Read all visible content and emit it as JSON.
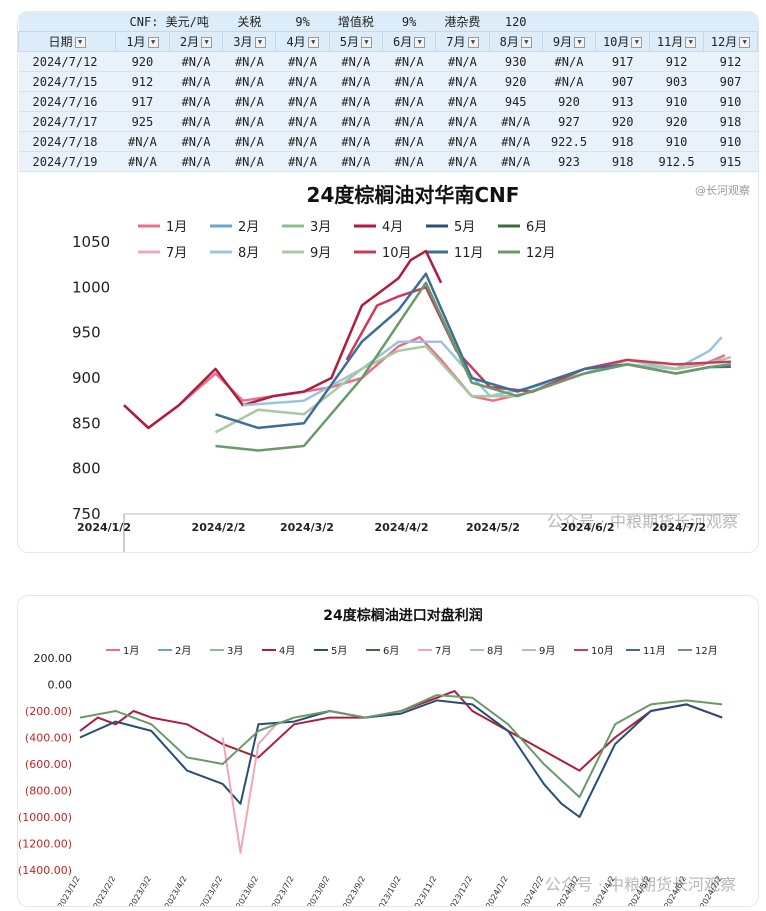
{
  "colors": {
    "m1": "#e8708a",
    "m2": "#6aa6cf",
    "m3": "#8fbc8f",
    "m4": "#b01c3c",
    "m5": "#274f76",
    "m6": "#3e6b3e",
    "m7": "#f0a8b8",
    "m8": "#9cc4de",
    "m9": "#a8c8a0",
    "m10": "#c83c5a",
    "m11": "#3c6e98",
    "m12": "#6a9a6a"
  },
  "table": {
    "params": [
      "CNF: 美元/吨",
      "关税",
      "9%",
      "增值税",
      "9%",
      "港杂费",
      "120"
    ],
    "header": [
      "日期",
      "1月",
      "2月",
      "3月",
      "4月",
      "5月",
      "6月",
      "7月",
      "8月",
      "9月",
      "10月",
      "11月",
      "12月"
    ],
    "rows": [
      [
        "2024/7/12",
        "920",
        "#N/A",
        "#N/A",
        "#N/A",
        "#N/A",
        "#N/A",
        "#N/A",
        "930",
        "#N/A",
        "917",
        "912",
        "912"
      ],
      [
        "2024/7/15",
        "912",
        "#N/A",
        "#N/A",
        "#N/A",
        "#N/A",
        "#N/A",
        "#N/A",
        "920",
        "#N/A",
        "907",
        "903",
        "907"
      ],
      [
        "2024/7/16",
        "917",
        "#N/A",
        "#N/A",
        "#N/A",
        "#N/A",
        "#N/A",
        "#N/A",
        "945",
        "920",
        "913",
        "910",
        "910"
      ],
      [
        "2024/7/17",
        "925",
        "#N/A",
        "#N/A",
        "#N/A",
        "#N/A",
        "#N/A",
        "#N/A",
        "#N/A",
        "927",
        "920",
        "920",
        "918"
      ],
      [
        "2024/7/18",
        "#N/A",
        "#N/A",
        "#N/A",
        "#N/A",
        "#N/A",
        "#N/A",
        "#N/A",
        "#N/A",
        "922.5",
        "918",
        "910",
        "910"
      ],
      [
        "2024/7/19",
        "#N/A",
        "#N/A",
        "#N/A",
        "#N/A",
        "#N/A",
        "#N/A",
        "#N/A",
        "#N/A",
        "923",
        "918",
        "912.5",
        "915"
      ]
    ]
  },
  "chart_data": [
    {
      "type": "line",
      "title": "24度棕榈油对华南CNF",
      "watermark_top": "@长河观察",
      "watermark": "公众号 · 中粮期货长河观察",
      "xlabel": "",
      "ylabel": "",
      "ylim": [
        750,
        1050
      ],
      "yticks": [
        "750",
        "800",
        "850",
        "900",
        "950",
        "1000",
        "1050"
      ],
      "xticks": [
        "2024/1/2",
        "2024/2/2",
        "2024/3/2",
        "2024/4/2",
        "2024/5/2",
        "2024/6/2",
        "2024/7/2"
      ],
      "legend": [
        "1月",
        "2月",
        "3月",
        "4月",
        "5月",
        "6月",
        "7月",
        "8月",
        "9月",
        "10月",
        "11月",
        "12月"
      ],
      "legend_position": "top",
      "series": [
        {
          "name": "1月",
          "x": [
            "2024/1/2",
            "2024/1/10",
            "2024/1/20",
            "2024/2/1",
            "2024/2/10",
            "2024/2/20",
            "2024/3/1",
            "2024/3/10",
            "2024/3/20",
            "2024/4/1",
            "2024/4/8",
            "2024/4/15",
            "2024/4/25",
            "2024/5/2",
            "2024/5/15",
            "2024/6/1",
            "2024/6/15",
            "2024/7/1",
            "2024/7/10",
            "2024/7/17"
          ],
          "y": [
            870,
            845,
            870,
            905,
            875,
            880,
            885,
            890,
            900,
            935,
            945,
            920,
            880,
            875,
            885,
            905,
            915,
            910,
            915,
            925
          ]
        },
        {
          "name": "4月",
          "x": [
            "2024/1/2",
            "2024/1/10",
            "2024/1/20",
            "2024/2/1",
            "2024/2/10",
            "2024/2/20",
            "2024/3/1",
            "2024/3/10",
            "2024/3/20",
            "2024/4/1",
            "2024/4/5",
            "2024/4/10",
            "2024/4/15"
          ],
          "y": [
            870,
            845,
            870,
            910,
            870,
            880,
            885,
            900,
            980,
            1010,
            1030,
            1040,
            1005
          ]
        },
        {
          "name": "8月",
          "x": [
            "2024/2/10",
            "2024/3/1",
            "2024/3/20",
            "2024/4/1",
            "2024/4/15",
            "2024/5/1",
            "2024/5/15",
            "2024/6/1",
            "2024/6/15",
            "2024/7/1",
            "2024/7/12",
            "2024/7/16"
          ],
          "y": [
            870,
            875,
            910,
            940,
            940,
            880,
            890,
            905,
            915,
            910,
            930,
            945
          ]
        },
        {
          "name": "9月",
          "x": [
            "2024/2/1",
            "2024/2/15",
            "2024/3/1",
            "2024/3/20",
            "2024/4/1",
            "2024/4/10",
            "2024/4/25",
            "2024/5/10",
            "2024/6/1",
            "2024/6/15",
            "2024/7/1",
            "2024/7/16",
            "2024/7/19"
          ],
          "y": [
            840,
            865,
            860,
            910,
            930,
            935,
            880,
            880,
            905,
            920,
            910,
            920,
            923
          ]
        },
        {
          "name": "10月",
          "x": [
            "2024/3/15",
            "2024/3/25",
            "2024/4/1",
            "2024/4/10",
            "2024/4/20",
            "2024/5/1",
            "2024/5/15",
            "2024/6/1",
            "2024/6/15",
            "2024/7/1",
            "2024/7/12",
            "2024/7/19"
          ],
          "y": [
            920,
            980,
            990,
            1000,
            930,
            890,
            885,
            910,
            920,
            915,
            917,
            918
          ]
        },
        {
          "name": "11月",
          "x": [
            "2024/2/1",
            "2024/2/15",
            "2024/3/1",
            "2024/3/20",
            "2024/4/1",
            "2024/4/10",
            "2024/4/25",
            "2024/5/10",
            "2024/6/1",
            "2024/6/15",
            "2024/7/1",
            "2024/7/12",
            "2024/7/19"
          ],
          "y": [
            860,
            845,
            850,
            940,
            975,
            1015,
            900,
            885,
            910,
            915,
            905,
            912,
            912.5
          ]
        },
        {
          "name": "12月",
          "x": [
            "2024/2/1",
            "2024/2/15",
            "2024/3/1",
            "2024/3/20",
            "2024/4/1",
            "2024/4/10",
            "2024/4/25",
            "2024/5/10",
            "2024/6/1",
            "2024/6/15",
            "2024/7/1",
            "2024/7/12",
            "2024/7/19"
          ],
          "y": [
            825,
            820,
            825,
            900,
            960,
            1005,
            895,
            880,
            905,
            915,
            905,
            912,
            915
          ]
        }
      ]
    },
    {
      "type": "line",
      "title": "24度棕榈油进口对盘利润",
      "watermark": "公众号 · 中粮期货长河观察",
      "xlabel": "",
      "ylabel": "",
      "ylim": [
        -1400,
        200
      ],
      "yticks": [
        "200.00",
        "0.00",
        "(200.00)",
        "(400.00)",
        "(600.00)",
        "(800.00)",
        "(1000.00)",
        "(1200.00)",
        "(1400.00)"
      ],
      "xticks": [
        "2023/1/2",
        "2023/2/2",
        "2023/3/2",
        "2023/4/2",
        "2023/5/2",
        "2023/6/2",
        "2023/7/2",
        "2023/8/2",
        "2023/9/2",
        "2023/10/2",
        "2023/11/2",
        "2023/12/2",
        "2024/1/2",
        "2024/2/2",
        "2024/3/2",
        "2024/4/2",
        "2024/5/2",
        "2024/6/2",
        "2024/7/2"
      ],
      "legend": [
        "1月",
        "2月",
        "3月",
        "4月",
        "5月",
        "6月",
        "7月",
        "8月",
        "9月",
        "10月",
        "11月",
        "12月"
      ],
      "legend_position": "top",
      "series": [
        {
          "name": "4月",
          "x": [
            0,
            0.5,
            1,
            1.5,
            2,
            3,
            4,
            5,
            6,
            7,
            8,
            9,
            10,
            10.5,
            11,
            12,
            13,
            14,
            15,
            16,
            17,
            18
          ],
          "y": [
            -350,
            -250,
            -300,
            -200,
            -250,
            -300,
            -450,
            -550,
            -300,
            -250,
            -250,
            -200,
            -100,
            -50,
            -200,
            -350,
            -500,
            -650,
            -400,
            -200,
            -150,
            -250
          ]
        },
        {
          "name": "5月",
          "x": [
            0,
            1,
            2,
            3,
            4,
            4.5,
            5,
            6,
            7,
            8,
            9,
            10,
            11,
            12,
            13,
            13.5,
            14,
            15,
            16,
            17,
            18
          ],
          "y": [
            -400,
            -280,
            -350,
            -650,
            -750,
            -900,
            -300,
            -280,
            -200,
            -250,
            -220,
            -120,
            -150,
            -350,
            -750,
            -900,
            -1000,
            -450,
            -200,
            -150,
            -250
          ]
        },
        {
          "name": "7月",
          "x": [
            4,
            4.5,
            5,
            5.5,
            6
          ],
          "y": [
            -400,
            -1270,
            -450,
            -300,
            -250
          ]
        },
        {
          "name": "12月",
          "x": [
            0,
            1,
            2,
            3,
            4,
            5,
            6,
            7,
            8,
            9,
            10,
            11,
            12,
            13,
            14,
            15,
            16,
            17,
            18
          ],
          "y": [
            -250,
            -200,
            -300,
            -550,
            -600,
            -350,
            -250,
            -200,
            -250,
            -200,
            -80,
            -100,
            -300,
            -600,
            -850,
            -300,
            -150,
            -120,
            -150
          ]
        }
      ]
    }
  ]
}
